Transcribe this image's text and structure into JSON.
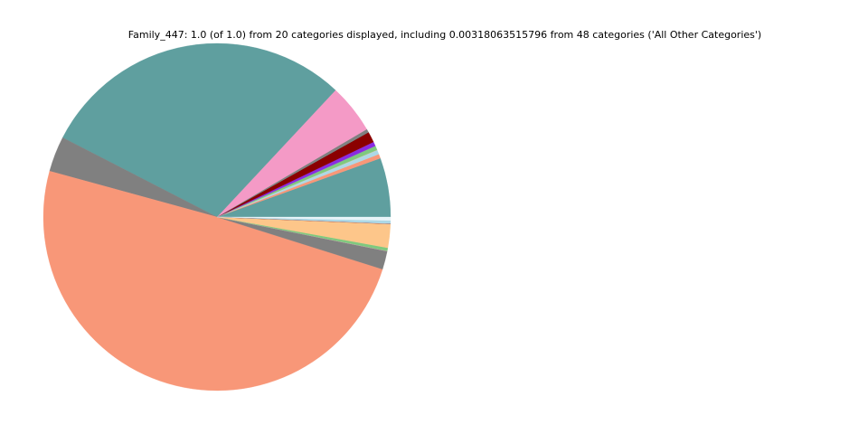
{
  "chart_data": {
    "type": "pie",
    "title": "Family_447: 1.0 (of 1.0) from 20 categories displayed, including 0.00318063515796 from 48 categories ('All Other Categories')",
    "values": [
      0.055,
      0.004,
      0.004,
      0.0002,
      0.004,
      0.004,
      0.01,
      0.0002,
      0.003,
      0.046,
      0.294,
      0.033,
      0.494,
      0.017,
      0.0002,
      0.003,
      0.022,
      0.0002,
      0.003,
      0.0032
    ],
    "colors": [
      "#5f9f9f",
      "#f89778",
      "#add8e6",
      "#fdc68a",
      "#7fc97f",
      "#8a2be2",
      "#8b0000",
      "#5f9f9f",
      "#808080",
      "#f49ac6",
      "#5f9f9f",
      "#808080",
      "#f89778",
      "#808080",
      "#f49ac6",
      "#7fc97f",
      "#fdc68a",
      "#8b0000",
      "#add8e6",
      "#e8f4f8"
    ],
    "start_angle": 0,
    "counterclockwise": true
  }
}
